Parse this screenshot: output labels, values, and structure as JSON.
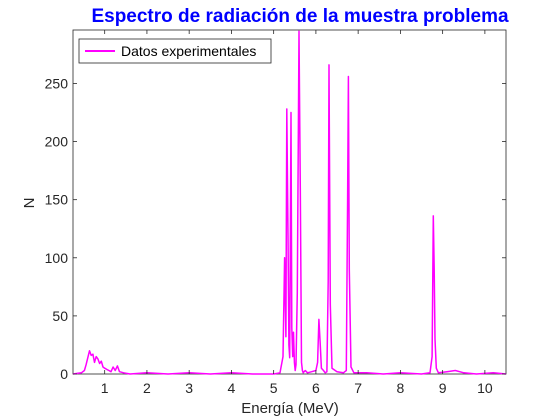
{
  "chart_data": {
    "type": "line",
    "title": "Espectro de radiación de la muestra problema",
    "xlabel": "Energía (MeV)",
    "ylabel": "N",
    "xlim": [
      0.25,
      10.5
    ],
    "ylim": [
      0,
      296
    ],
    "xticks": [
      1,
      2,
      3,
      4,
      5,
      6,
      7,
      8,
      9,
      10
    ],
    "yticks": [
      0,
      50,
      100,
      150,
      200,
      250
    ],
    "grid": false,
    "legend_position": "top-left",
    "colors": {
      "series": "#ff00ff",
      "title": "#0000ff",
      "axis": "#262626"
    },
    "series": [
      {
        "name": "Datos experimentales",
        "x": [
          0.25,
          0.45,
          0.52,
          0.56,
          0.6,
          0.64,
          0.68,
          0.72,
          0.76,
          0.8,
          0.84,
          0.88,
          0.92,
          0.96,
          1.0,
          1.05,
          1.1,
          1.15,
          1.2,
          1.25,
          1.3,
          1.35,
          1.45,
          1.6,
          2.0,
          2.5,
          3.0,
          3.5,
          4.0,
          4.5,
          5.0,
          5.15,
          5.22,
          5.26,
          5.29,
          5.31,
          5.34,
          5.36,
          5.38,
          5.41,
          5.43,
          5.45,
          5.47,
          5.49,
          5.51,
          5.53,
          5.56,
          5.6,
          5.63,
          5.66,
          5.68,
          5.7,
          5.72,
          5.75,
          5.8,
          5.9,
          6.0,
          6.04,
          6.07,
          6.1,
          6.13,
          6.18,
          6.22,
          6.26,
          6.29,
          6.31,
          6.34,
          6.38,
          6.5,
          6.65,
          6.72,
          6.75,
          6.77,
          6.79,
          6.83,
          6.9,
          7.2,
          7.6,
          8.0,
          8.5,
          8.7,
          8.75,
          8.78,
          8.8,
          8.82,
          8.85,
          8.9,
          9.1,
          9.3,
          9.5,
          9.8,
          10.2,
          10.5
        ],
        "y": [
          0,
          1,
          3,
          8,
          14,
          20,
          16,
          17,
          10,
          15,
          13,
          9,
          11,
          6,
          5,
          4,
          3,
          2,
          6,
          3,
          7,
          2,
          1,
          0,
          1,
          0,
          1,
          0,
          1,
          0,
          0,
          1,
          15,
          100,
          32,
          228,
          120,
          25,
          14,
          225,
          40,
          15,
          36,
          10,
          3,
          8,
          70,
          295,
          160,
          10,
          3,
          1,
          2,
          3,
          1,
          2,
          3,
          10,
          47,
          28,
          5,
          3,
          1,
          2,
          80,
          266,
          60,
          5,
          2,
          1,
          3,
          150,
          256,
          90,
          6,
          1,
          1,
          0,
          1,
          0,
          1,
          15,
          136,
          90,
          30,
          5,
          1,
          2,
          3,
          1,
          0,
          1,
          0
        ]
      }
    ]
  }
}
